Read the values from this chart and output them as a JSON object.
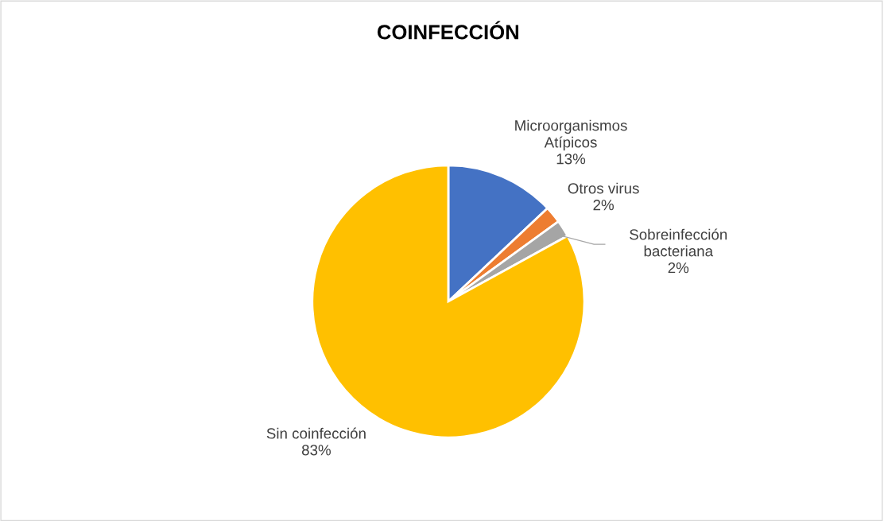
{
  "chart_data": {
    "type": "pie",
    "title": "COINFECCIÓN",
    "categories": [
      "Microorganismos\nAtípicos",
      "Otros virus",
      "Sobreinfección\nbacteriana",
      "Sin coinfección"
    ],
    "values": [
      13,
      2,
      2,
      83
    ],
    "colors": [
      "#4472c4",
      "#ed7d31",
      "#a5a5a5",
      "#ffc000"
    ],
    "value_labels": [
      "13%",
      "2%",
      "2%",
      "83%"
    ]
  }
}
